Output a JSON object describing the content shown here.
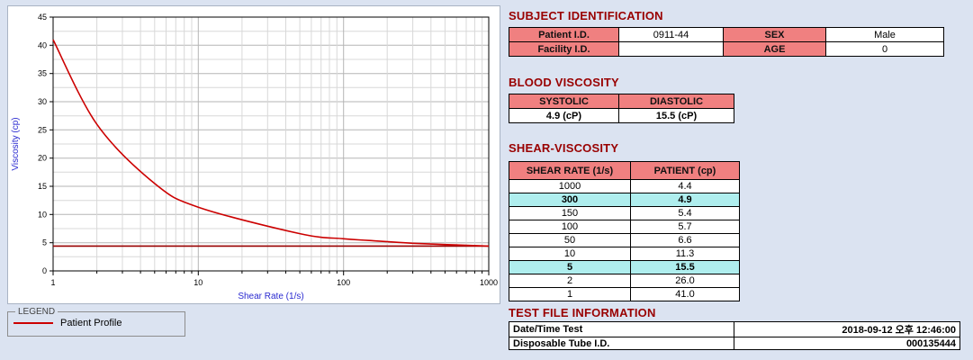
{
  "window": {
    "background": "#dbe3f1"
  },
  "chart_data": {
    "type": "line",
    "title": "",
    "xlabel": "Shear Rate (1/s)",
    "ylabel": "Viscosity (cp)",
    "x_scale": "log",
    "xlim": [
      1,
      1000
    ],
    "ylim": [
      0,
      45
    ],
    "x_ticks": [
      1,
      10,
      100,
      1000
    ],
    "y_ticks": [
      0,
      5,
      10,
      15,
      20,
      25,
      30,
      35,
      40,
      45
    ],
    "grid": true,
    "legend_position": "below-left",
    "series": [
      {
        "name": "Patient Profile",
        "color": "#cc0000",
        "x": [
          1,
          2,
          5,
          10,
          50,
          100,
          150,
          300,
          1000
        ],
        "y": [
          41.0,
          26.0,
          15.5,
          11.3,
          6.6,
          5.7,
          5.4,
          4.9,
          4.4
        ]
      }
    ],
    "baseline": {
      "y": 4.4,
      "color": "#990000"
    }
  },
  "legend": {
    "title": "LEGEND",
    "items": [
      {
        "label": "Patient Profile",
        "color": "#cc0000"
      }
    ]
  },
  "subject_identification": {
    "title": "SUBJECT IDENTIFICATION",
    "rows": [
      {
        "label1": "Patient I.D.",
        "value1": "0911-44",
        "label2": "SEX",
        "value2": "Male"
      },
      {
        "label1": "Facility I.D.",
        "value1": "",
        "label2": "AGE",
        "value2": "0"
      }
    ]
  },
  "blood_viscosity": {
    "title": "BLOOD VISCOSITY",
    "headers": [
      "SYSTOLIC",
      "DIASTOLIC"
    ],
    "values": [
      "4.9 (cP)",
      "15.5 (cP)"
    ]
  },
  "shear_viscosity": {
    "title": "SHEAR-VISCOSITY",
    "headers": [
      "SHEAR RATE (1/s)",
      "PATIENT (cp)"
    ],
    "rows": [
      {
        "rate": "1000",
        "patient": "4.4",
        "highlight": false
      },
      {
        "rate": "300",
        "patient": "4.9",
        "highlight": true
      },
      {
        "rate": "150",
        "patient": "5.4",
        "highlight": false
      },
      {
        "rate": "100",
        "patient": "5.7",
        "highlight": false
      },
      {
        "rate": "50",
        "patient": "6.6",
        "highlight": false
      },
      {
        "rate": "10",
        "patient": "11.3",
        "highlight": false
      },
      {
        "rate": "5",
        "patient": "15.5",
        "highlight": true
      },
      {
        "rate": "2",
        "patient": "26.0",
        "highlight": false
      },
      {
        "rate": "1",
        "patient": "41.0",
        "highlight": false
      }
    ]
  },
  "test_file_information": {
    "title": "TEST FILE INFORMATION",
    "rows": [
      {
        "label": "Date/Time Test",
        "value": "2018-09-12  오후 12:46:00"
      },
      {
        "label": "Disposable Tube I.D.",
        "value": "000135444"
      }
    ]
  },
  "colors": {
    "section_title": "#990000",
    "label_cell_bg": "#F08080",
    "highlight_bg": "#AFEEEE",
    "curve": "#cc0000",
    "baseline": "#990000",
    "axis_label": "#2a2ad0",
    "grid_major": "#b5b5b5",
    "grid_minor": "#d8d8d8"
  }
}
